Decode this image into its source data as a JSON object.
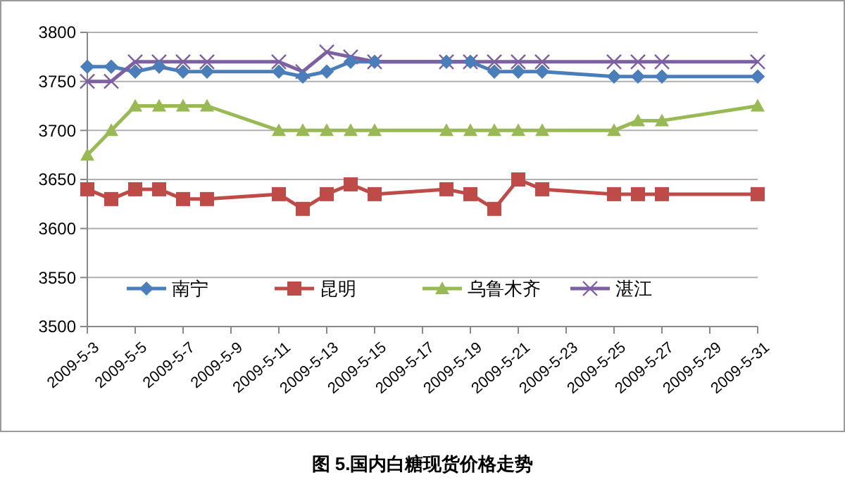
{
  "chart_data": {
    "type": "line",
    "title": "图 5.国内白糖现货价格走势",
    "x": [
      "2009-05-03",
      "2009-05-04",
      "2009-05-05",
      "2009-05-06",
      "2009-05-07",
      "2009-05-08",
      "2009-05-11",
      "2009-05-12",
      "2009-05-13",
      "2009-05-14",
      "2009-05-15",
      "2009-05-18",
      "2009-05-19",
      "2009-05-20",
      "2009-05-21",
      "2009-05-22",
      "2009-05-25",
      "2009-05-26",
      "2009-05-27",
      "2009-05-31"
    ],
    "series": [
      {
        "name": "南宁",
        "color": "#4a7ebb",
        "marker": "diamond",
        "values": [
          3765,
          3765,
          3760,
          3765,
          3760,
          3760,
          3760,
          3755,
          3760,
          3770,
          3770,
          3770,
          3770,
          3760,
          3760,
          3760,
          3755,
          3755,
          3755,
          3755
        ]
      },
      {
        "name": "昆明",
        "color": "#be4b48",
        "marker": "square",
        "values": [
          3640,
          3630,
          3640,
          3640,
          3630,
          3630,
          3635,
          3620,
          3635,
          3645,
          3635,
          3640,
          3635,
          3620,
          3650,
          3640,
          3635,
          3635,
          3635,
          3635
        ]
      },
      {
        "name": "乌鲁木齐",
        "color": "#98b954",
        "marker": "triangle",
        "values": [
          3675,
          3700,
          3725,
          3725,
          3725,
          3725,
          3700,
          3700,
          3700,
          3700,
          3700,
          3700,
          3700,
          3700,
          3700,
          3700,
          3700,
          3710,
          3710,
          3725
        ]
      },
      {
        "name": "湛江",
        "color": "#7d60a0",
        "marker": "cross",
        "values": [
          3750,
          3750,
          3770,
          3770,
          3770,
          3770,
          3770,
          3760,
          3780,
          3775,
          3770,
          3770,
          3770,
          3770,
          3770,
          3770,
          3770,
          3770,
          3770,
          3770
        ]
      }
    ],
    "xlim": [
      "2009-05-03",
      "2009-05-31"
    ],
    "xticks": [
      {
        "value": "2009-05-03",
        "label": "2009-5-3"
      },
      {
        "value": "2009-05-05",
        "label": "2009-5-5"
      },
      {
        "value": "2009-05-07",
        "label": "2009-5-7"
      },
      {
        "value": "2009-05-09",
        "label": "2009-5-9"
      },
      {
        "value": "2009-05-11",
        "label": "2009-5-11"
      },
      {
        "value": "2009-05-13",
        "label": "2009-5-13"
      },
      {
        "value": "2009-05-15",
        "label": "2009-5-15"
      },
      {
        "value": "2009-05-17",
        "label": "2009-5-17"
      },
      {
        "value": "2009-05-19",
        "label": "2009-5-19"
      },
      {
        "value": "2009-05-21",
        "label": "2009-5-21"
      },
      {
        "value": "2009-05-23",
        "label": "2009-5-23"
      },
      {
        "value": "2009-05-25",
        "label": "2009-5-25"
      },
      {
        "value": "2009-05-27",
        "label": "2009-5-27"
      },
      {
        "value": "2009-05-29",
        "label": "2009-5-29"
      },
      {
        "value": "2009-05-31",
        "label": "2009-5-31"
      }
    ],
    "ylim": [
      3500,
      3800
    ],
    "yticks": [
      3500,
      3550,
      3600,
      3650,
      3700,
      3750,
      3800
    ],
    "grid": "y",
    "legend": "bottom"
  }
}
